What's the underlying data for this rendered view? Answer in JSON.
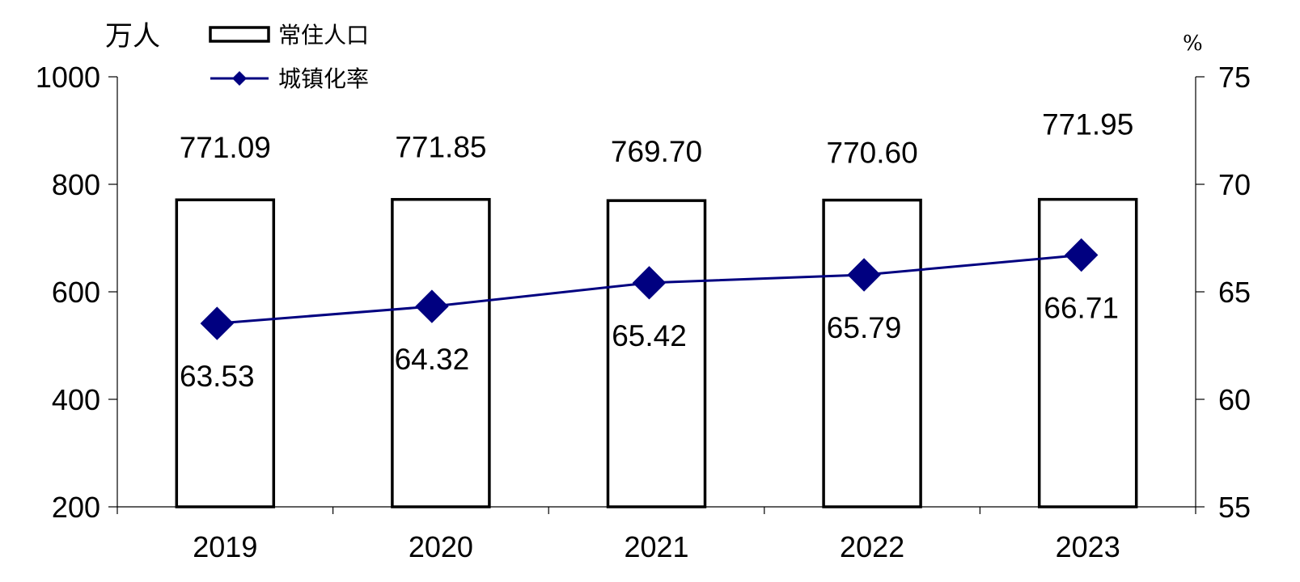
{
  "chart_data": {
    "type": "bar+line",
    "categories": [
      "2019",
      "2020",
      "2021",
      "2022",
      "2023"
    ],
    "series": [
      {
        "name": "常住人口",
        "kind": "bar",
        "axis": "left",
        "values": [
          771.09,
          771.85,
          769.7,
          770.6,
          771.95
        ],
        "labels": [
          "771.09",
          "771.85",
          "769.70",
          "770.60",
          "771.95"
        ]
      },
      {
        "name": "城镇化率",
        "kind": "line",
        "axis": "right",
        "marker": "diamond",
        "color": "#000080",
        "values": [
          63.53,
          64.32,
          65.42,
          65.79,
          66.71
        ],
        "labels": [
          "63.53",
          "64.32",
          "65.42",
          "65.79",
          "66.71"
        ]
      }
    ],
    "left_axis": {
      "unit": "万人",
      "min": 200,
      "max": 1000,
      "ticks": [
        "200",
        "400",
        "600",
        "800",
        "1000"
      ]
    },
    "right_axis": {
      "unit": "%",
      "min": 55,
      "max": 75,
      "ticks": [
        "55",
        "60",
        "65",
        "70",
        "75"
      ]
    },
    "legend_position": "top-left",
    "grid": false
  }
}
